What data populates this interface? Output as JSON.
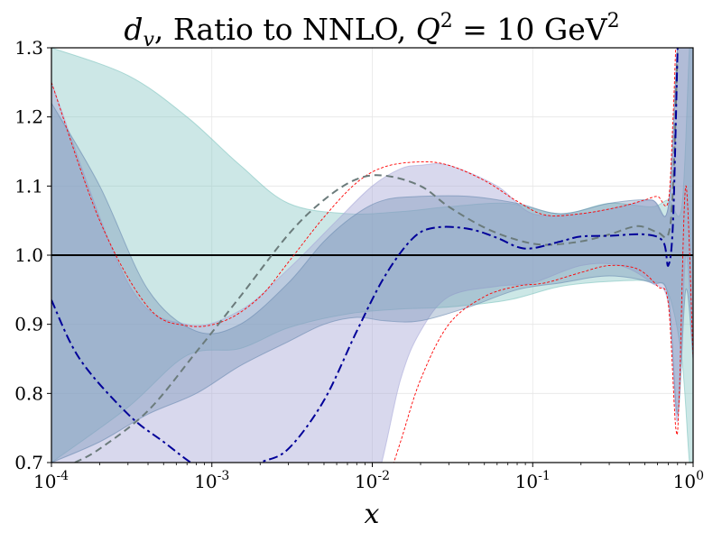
{
  "chart_data": {
    "type": "area",
    "title": "d_v, Ratio to NNLO, Q^2 = 10 GeV^2",
    "title_parts": {
      "sym": "d",
      "sub": "v",
      "mid": ", Ratio to NNLO, ",
      "q": "Q",
      "eq": " = 10 GeV"
    },
    "xlabel": "x",
    "xscale": "log",
    "xlim": [
      0.0001,
      1
    ],
    "ylim": [
      0.7,
      1.3
    ],
    "grid": true,
    "xticks": [
      {
        "value": 0.0001,
        "base": "10",
        "exp": "-4"
      },
      {
        "value": 0.001,
        "base": "10",
        "exp": "-3"
      },
      {
        "value": 0.01,
        "base": "10",
        "exp": "-2"
      },
      {
        "value": 0.1,
        "base": "10",
        "exp": "-1"
      },
      {
        "value": 1,
        "base": "10",
        "exp": "0"
      }
    ],
    "yticks": [
      {
        "value": 0.7,
        "label": "0.7"
      },
      {
        "value": 0.8,
        "label": "0.8"
      },
      {
        "value": 0.9,
        "label": "0.9"
      },
      {
        "value": 1.0,
        "label": "1.0"
      },
      {
        "value": 1.1,
        "label": "1.1"
      },
      {
        "value": 1.2,
        "label": "1.2"
      },
      {
        "value": 1.3,
        "label": "1.3"
      }
    ],
    "bands": [
      {
        "color": "#80c4c0",
        "opacity": 0.4,
        "x": [
          0.0001,
          0.0003,
          0.0007,
          0.0015,
          0.003,
          0.007,
          0.015,
          0.03,
          0.07,
          0.15,
          0.3,
          0.55,
          0.7,
          0.85,
          0.95,
          1.0
        ],
        "upper": [
          1.3,
          1.26,
          1.2,
          1.13,
          1.075,
          1.06,
          1.063,
          1.07,
          1.075,
          1.06,
          1.075,
          1.07,
          1.08,
          1.07,
          1.3,
          1.3
        ],
        "lower": [
          0.7,
          0.78,
          0.855,
          0.865,
          0.895,
          0.915,
          0.922,
          0.925,
          0.935,
          0.955,
          0.962,
          0.962,
          0.945,
          0.85,
          0.7,
          0.7
        ]
      },
      {
        "color": "#a8a8d8",
        "opacity": 0.45,
        "x": [
          0.0001,
          0.0003,
          0.0007,
          0.0015,
          0.003,
          0.006,
          0.01,
          0.015,
          0.02,
          0.03,
          0.06,
          0.1,
          0.2,
          0.35,
          0.55,
          0.7,
          0.8,
          0.9,
          1.0
        ],
        "upper": [
          1.25,
          0.96,
          0.9,
          0.92,
          0.98,
          1.05,
          1.1,
          1.125,
          1.13,
          1.13,
          1.1,
          1.06,
          1.06,
          1.07,
          1.08,
          1.07,
          1.3,
          1.3,
          1.3
        ],
        "lower": [
          0.7,
          0.68,
          0.67,
          0.66,
          0.66,
          0.66,
          0.66,
          0.82,
          0.89,
          0.94,
          0.955,
          0.96,
          0.985,
          0.985,
          0.96,
          0.93,
          0.76,
          1.0,
          0.85
        ]
      },
      {
        "color": "#6a8ab0",
        "opacity": 0.35,
        "x": [
          0.0001,
          0.0002,
          0.0004,
          0.0008,
          0.0015,
          0.003,
          0.005,
          0.008,
          0.012,
          0.02,
          0.04,
          0.08,
          0.15,
          0.3,
          0.55,
          0.7,
          0.8,
          0.9,
          1.0
        ],
        "upper": [
          1.22,
          1.1,
          0.95,
          0.89,
          0.9,
          0.96,
          1.02,
          1.06,
          1.08,
          1.085,
          1.085,
          1.075,
          1.06,
          1.075,
          1.08,
          1.07,
          1.3,
          1.3,
          1.3
        ],
        "lower": [
          0.7,
          0.73,
          0.77,
          0.8,
          0.84,
          0.875,
          0.9,
          0.91,
          0.905,
          0.905,
          0.925,
          0.95,
          0.96,
          0.97,
          0.96,
          0.94,
          0.77,
          0.95,
          0.85
        ]
      }
    ],
    "lines": [
      {
        "style": "solid",
        "color": "#000000",
        "width": 2,
        "x": [
          0.0001,
          1.0
        ],
        "y": [
          1.0,
          1.0
        ]
      },
      {
        "style": "dashed-red-upper",
        "color": "#ff0000",
        "width": 0.9,
        "dash": "3,2",
        "x": [
          0.0001,
          0.0002,
          0.0004,
          0.0007,
          0.0012,
          0.002,
          0.003,
          0.005,
          0.008,
          0.012,
          0.02,
          0.03,
          0.05,
          0.08,
          0.12,
          0.2,
          0.35,
          0.5,
          0.6,
          0.7,
          0.75,
          0.78,
          0.8,
          0.9,
          1.0
        ],
        "y": [
          1.25,
          1.05,
          0.925,
          0.898,
          0.905,
          0.94,
          0.99,
          1.055,
          1.105,
          1.128,
          1.135,
          1.13,
          1.108,
          1.078,
          1.058,
          1.06,
          1.07,
          1.08,
          1.085,
          1.078,
          1.2,
          1.3,
          1.3,
          1.3,
          1.3
        ]
      },
      {
        "style": "dashed-red-lower",
        "color": "#ff0000",
        "width": 0.9,
        "dash": "3,2",
        "x": [
          0.012,
          0.015,
          0.02,
          0.03,
          0.05,
          0.08,
          0.12,
          0.2,
          0.3,
          0.45,
          0.6,
          0.7,
          0.78,
          0.82,
          0.9,
          1.0
        ],
        "y": [
          0.66,
          0.73,
          0.82,
          0.9,
          0.94,
          0.955,
          0.96,
          0.975,
          0.985,
          0.98,
          0.955,
          0.93,
          0.75,
          0.8,
          1.1,
          0.85
        ]
      },
      {
        "style": "gray-dashed",
        "color": "#6b7b7b",
        "width": 2,
        "dash": "8,5",
        "x": [
          0.00014,
          0.0002,
          0.0004,
          0.0008,
          0.0015,
          0.003,
          0.005,
          0.008,
          0.012,
          0.02,
          0.03,
          0.05,
          0.08,
          0.12,
          0.2,
          0.3,
          0.45,
          0.6,
          0.7,
          0.75,
          0.8
        ],
        "y": [
          0.7,
          0.72,
          0.775,
          0.86,
          0.94,
          1.03,
          1.08,
          1.11,
          1.115,
          1.1,
          1.07,
          1.04,
          1.022,
          1.015,
          1.02,
          1.03,
          1.042,
          1.033,
          1.03,
          1.1,
          1.3
        ]
      },
      {
        "style": "blue-dashdot",
        "color": "#000099",
        "width": 2,
        "dash": "10,4,3,4",
        "x": [
          0.0001,
          0.00015,
          0.0003,
          0.0005,
          0.0008,
          0.0012,
          0.002,
          0.003,
          0.005,
          0.008,
          0.012,
          0.018,
          0.025,
          0.04,
          0.06,
          0.08,
          0.1,
          0.15,
          0.2,
          0.3,
          0.5,
          0.65,
          0.7,
          0.75,
          0.8
        ],
        "y": [
          0.935,
          0.85,
          0.77,
          0.73,
          0.695,
          0.68,
          0.7,
          0.72,
          0.79,
          0.89,
          0.97,
          1.025,
          1.04,
          1.038,
          1.025,
          1.012,
          1.01,
          1.02,
          1.027,
          1.028,
          1.03,
          1.02,
          0.985,
          1.05,
          1.3
        ]
      }
    ]
  }
}
